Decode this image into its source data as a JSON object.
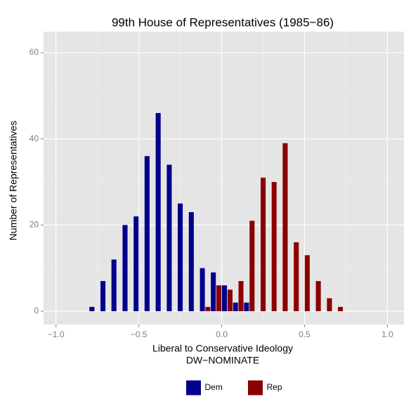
{
  "chart_data": {
    "type": "histogram",
    "title": "99th House of Representatives (1985−86)",
    "xlabel": [
      "Liberal to Conservative Ideology",
      "DW−NOMINATE"
    ],
    "ylabel": "Number of Representatives",
    "bins": [
      -0.8,
      -0.733,
      -0.667,
      -0.6,
      -0.533,
      -0.467,
      -0.4,
      -0.333,
      -0.267,
      -0.2,
      -0.133,
      -0.067,
      0.0,
      0.067,
      0.133,
      0.2,
      0.267,
      0.333,
      0.4,
      0.467,
      0.533,
      0.6,
      0.667,
      0.733
    ],
    "series": [
      {
        "name": "Dem",
        "color": "#00008b",
        "values": [
          1,
          7,
          12,
          20,
          22,
          36,
          46,
          34,
          25,
          23,
          10,
          9,
          6,
          2,
          2,
          0,
          0,
          0,
          0,
          0,
          0,
          0,
          0
        ]
      },
      {
        "name": "Rep",
        "color": "#8b0000",
        "values": [
          0,
          0,
          0,
          0,
          0,
          0,
          0,
          0,
          0,
          0,
          1,
          6,
          5,
          7,
          21,
          31,
          30,
          39,
          16,
          13,
          7,
          3,
          1
        ]
      }
    ],
    "xlim": [
      -1.075,
      1.1
    ],
    "xticks": [
      {
        "value": -1.0,
        "label": "−1.0"
      },
      {
        "value": -0.5,
        "label": "−0.5"
      },
      {
        "value": 0.0,
        "label": "0.0"
      },
      {
        "value": 0.5,
        "label": "0.5"
      },
      {
        "value": 1.0,
        "label": "1.0"
      }
    ],
    "ylim": [
      -3.1,
      64.9
    ],
    "yticks": [
      0,
      20,
      40,
      60
    ],
    "grid": true,
    "legend": "bottom"
  }
}
